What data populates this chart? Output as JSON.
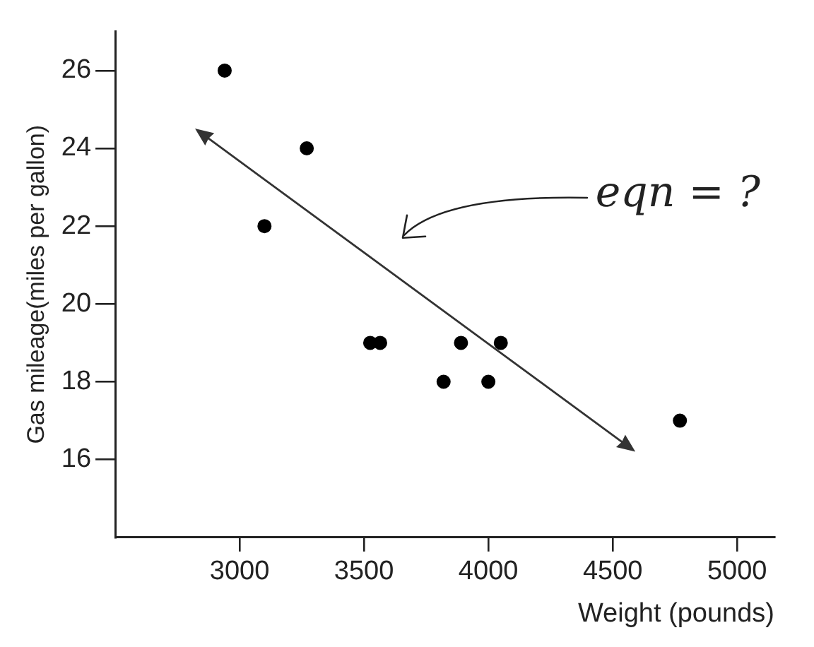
{
  "chart_data": {
    "type": "scatter",
    "xlabel": "Weight (pounds)",
    "ylabel": "Gas mileage(miles per gallon)",
    "xlim": [
      2500,
      5150
    ],
    "ylim": [
      14,
      27
    ],
    "xticks": [
      3000,
      3500,
      4000,
      4500,
      5000
    ],
    "yticks": [
      16,
      18,
      20,
      22,
      24,
      26
    ],
    "grid": false,
    "legend": false,
    "marker": "circle",
    "series": [
      {
        "color": "#000000",
        "x": [
          2940,
          3100,
          3270,
          3525,
          3565,
          3820,
          3890,
          4000,
          4050,
          4770
        ],
        "values": [
          26,
          22,
          24,
          19,
          19,
          18,
          19,
          18,
          19,
          17
        ]
      }
    ],
    "annotations": [
      "eqn = ?"
    ]
  }
}
